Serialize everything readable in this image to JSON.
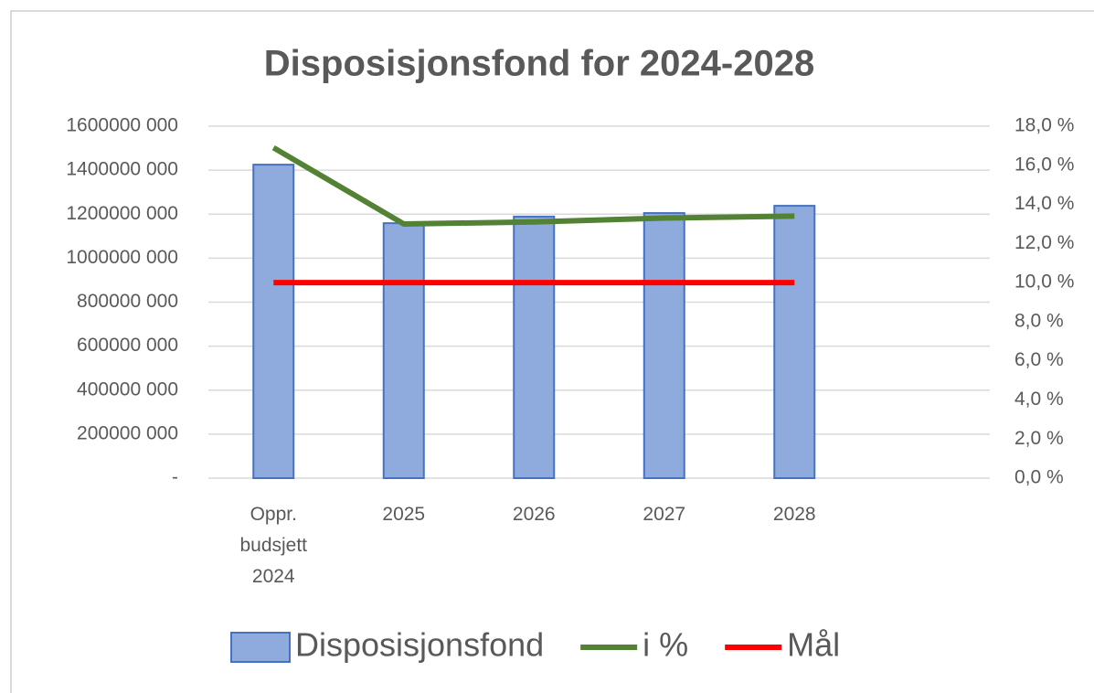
{
  "chart_data": {
    "type": "bar",
    "title": "Disposisjonsfond for 2024-2028",
    "categories": [
      "Oppr. budsjett 2024",
      "2025",
      "2026",
      "2027",
      "2028",
      null
    ],
    "series": [
      {
        "name": "Disposisjonsfond",
        "type": "bar",
        "color": "#8faadc",
        "edge_color": "#4472c4",
        "values": [
          1425000000,
          1159000000,
          1189000000,
          1205000000,
          1238000000,
          null
        ]
      },
      {
        "name": "i %",
        "type": "line",
        "axis": "y2",
        "color": "#548235",
        "values": [
          16.9,
          13.0,
          13.1,
          13.3,
          13.4,
          null
        ]
      },
      {
        "name": "Mål",
        "type": "line",
        "axis": "y2",
        "color": "#ff0000",
        "values": [
          10.0,
          10.0,
          10.0,
          10.0,
          10.0,
          null
        ]
      }
    ],
    "ylim": [
      0,
      1600000000
    ],
    "yticks": [
      {
        "value": 0,
        "label": "-"
      },
      {
        "value": 200000000,
        "label": "200000 000"
      },
      {
        "value": 400000000,
        "label": "400000 000"
      },
      {
        "value": 600000000,
        "label": "600000 000"
      },
      {
        "value": 800000000,
        "label": "800000 000"
      },
      {
        "value": 1000000000,
        "label": "1000000 000"
      },
      {
        "value": 1200000000,
        "label": "1200000 000"
      },
      {
        "value": 1400000000,
        "label": "1400000 000"
      },
      {
        "value": 1600000000,
        "label": "1600000 000"
      }
    ],
    "y2lim": [
      0,
      18
    ],
    "y2ticks": [
      {
        "value": 0,
        "label": "0,0 %"
      },
      {
        "value": 2,
        "label": "2,0 %"
      },
      {
        "value": 4,
        "label": "4,0 %"
      },
      {
        "value": 6,
        "label": "6,0 %"
      },
      {
        "value": 8,
        "label": "8,0 %"
      },
      {
        "value": 10,
        "label": "10,0 %"
      },
      {
        "value": 12,
        "label": "12,0 %"
      },
      {
        "value": 14,
        "label": "14,0 %"
      },
      {
        "value": 16,
        "label": "16,0 %"
      },
      {
        "value": 18,
        "label": "18,0 %"
      }
    ],
    "grid": true,
    "legend": "bottom"
  }
}
